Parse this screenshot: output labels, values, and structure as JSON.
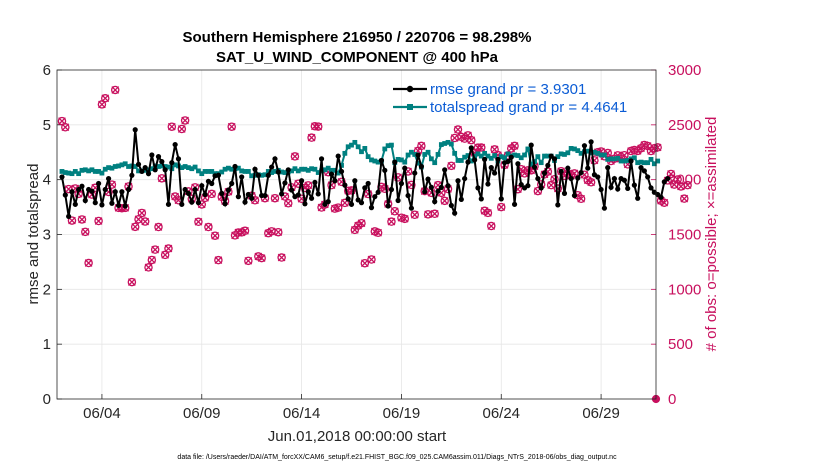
{
  "chart_data": {
    "type": "line",
    "title_line1": "Southern Hemisphere 216950 / 220706 = 98.298%",
    "title_line2": "SAT_U_WIND_COMPONENT @ 400 hPa",
    "ylabel_left": "rmse and totalspread",
    "ylabel_right": "# of obs: o=possible; ×=assimilated",
    "xlabel": "Jun.01,2018 00:00:00 start",
    "footnote": "data file: /Users/raeder/DAI/ATM_forcXX/CAM6_setup/f.e21.FHIST_BGC.f09_025.CAM6assim.011/Diags_NTrS_2018-06/obs_diag_output.nc",
    "x_unit": "days since Jun.01,2018 00:00:00",
    "xlim": [
      0.75,
      30.75
    ],
    "ylim_left": [
      0,
      6
    ],
    "ylim_right": [
      0,
      3000
    ],
    "yticks_left": [
      0,
      1,
      2,
      3,
      4,
      5,
      6
    ],
    "yticks_right": [
      0,
      500,
      1000,
      1500,
      2000,
      2500,
      3000
    ],
    "xticks": [
      {
        "value": 3.0,
        "label": "06/04"
      },
      {
        "value": 8.0,
        "label": "06/09"
      },
      {
        "value": 13.0,
        "label": "06/14"
      },
      {
        "value": 18.0,
        "label": "06/19"
      },
      {
        "value": 23.0,
        "label": "06/24"
      },
      {
        "value": 28.0,
        "label": "06/29"
      }
    ],
    "grid": true,
    "legend_position": "top-right",
    "colors": {
      "rmse": "#000000",
      "totalspread": "#008080",
      "obs": "#c8105e"
    },
    "series": [
      {
        "name": "rmse",
        "legend": "rmse grand pr = 3.9301",
        "values": [
          4.05,
          3.72,
          3.33,
          3.78,
          3.55,
          3.82,
          3.88,
          3.62,
          3.82,
          3.79,
          3.58,
          3.93,
          3.54,
          3.82,
          4.02,
          3.57,
          3.78,
          3.53,
          3.78,
          3.52,
          3.82,
          4.08,
          4.91,
          4.28,
          4.15,
          4.22,
          4.11,
          4.45,
          4.18,
          4.42,
          4.33,
          4.18,
          3.55,
          4.31,
          4.64,
          4.38,
          3.55,
          3.82,
          3.75,
          3.59,
          3.82,
          3.58,
          3.89,
          3.73,
          3.97,
          3.93,
          4.07,
          4.08,
          3.75,
          3.56,
          3.81,
          3.93,
          4.24,
          3.69,
          4.05,
          3.59,
          3.73,
          3.66,
          4.19,
          4.08,
          3.71,
          3.71,
          4.08,
          4.23,
          4.38,
          4.14,
          3.74,
          3.94,
          4.18,
          3.81,
          3.69,
          3.72,
          3.98,
          3.56,
          3.78,
          3.66,
          3.95,
          3.74,
          4.38,
          3.55,
          3.6,
          4.1,
          3.98,
          4.43,
          4.15,
          3.9,
          3.65,
          3.55,
          3.98,
          3.63,
          3.58,
          3.85,
          3.93,
          3.49,
          3.69,
          3.77,
          4.35,
          4.17,
          3.52,
          3.82,
          4.32,
          3.62,
          3.93,
          4.21,
          3.71,
          3.48,
          4.12,
          4.45,
          4.24,
          3.78,
          4.01,
          3.86,
          3.6,
          3.79,
          3.86,
          4.18,
          3.89,
          3.53,
          3.39,
          3.98,
          3.64,
          4.02,
          4.32,
          4.58,
          4.36,
          3.85,
          3.65,
          4.37,
          3.92,
          4.22,
          4.12,
          4.37,
          3.65,
          4.31,
          4.33,
          4.41,
          3.55,
          4.29,
          3.91,
          3.85,
          3.89,
          4.63,
          4.23,
          4.02,
          3.85,
          4.12,
          4.26,
          4.43,
          4.38,
          3.54,
          4.15,
          3.75,
          4.21,
          4.02,
          3.71,
          4.03,
          4.13,
          4.62,
          4.21,
          4.69,
          4.09,
          4.05,
          3.82,
          3.48,
          4.22,
          3.86,
          4.02,
          3.83,
          4.02,
          3.99,
          3.84,
          4.34,
          3.9,
          3.66,
          4.22,
          4.16,
          4.05,
          3.85,
          3.77,
          3.73,
          3.68,
          3.96,
          4.02
        ]
      },
      {
        "name": "totalspread",
        "legend": "totalspread grand pr = 4.4641",
        "values": [
          4.15,
          4.13,
          4.12,
          4.11,
          4.15,
          4.11,
          4.17,
          4.18,
          4.16,
          4.18,
          4.15,
          4.15,
          4.12,
          4.19,
          4.22,
          4.21,
          4.24,
          4.25,
          4.27,
          4.29,
          4.24,
          4.25,
          4.24,
          4.16,
          4.16,
          4.17,
          4.18,
          4.2,
          4.25,
          4.24,
          4.25,
          4.24,
          4.23,
          4.2,
          4.27,
          4.25,
          4.22,
          4.24,
          4.22,
          4.2,
          4.23,
          4.16,
          4.11,
          4.15,
          4.15,
          4.15,
          4.11,
          4.11,
          4.14,
          4.19,
          4.21,
          4.19,
          4.2,
          4.21,
          4.16,
          4.15,
          4.15,
          4.07,
          4.08,
          4.09,
          4.08,
          4.09,
          4.15,
          4.13,
          4.15,
          4.17,
          4.14,
          4.13,
          4.14,
          4.16,
          4.2,
          4.16,
          4.19,
          4.19,
          4.17,
          4.2,
          4.19,
          4.13,
          4.16,
          4.18,
          4.21,
          4.17,
          4.17,
          4.12,
          4.26,
          4.48,
          4.6,
          4.63,
          4.68,
          4.6,
          4.51,
          4.57,
          4.42,
          4.36,
          4.34,
          4.32,
          4.34,
          4.56,
          4.62,
          4.63,
          4.31,
          4.37,
          4.36,
          4.32,
          4.45,
          4.5,
          4.46,
          4.3,
          4.23,
          4.46,
          4.5,
          4.38,
          4.31,
          4.46,
          4.64,
          4.66,
          4.68,
          4.65,
          4.48,
          4.35,
          4.35,
          4.41,
          4.44,
          4.34,
          4.43,
          4.47,
          4.43,
          4.48,
          4.43,
          4.39,
          4.44,
          4.34,
          4.42,
          4.4,
          4.47,
          4.43,
          4.45,
          4.44,
          4.4,
          4.45,
          4.56,
          4.28,
          4.33,
          4.42,
          4.31,
          4.43,
          4.43,
          4.43,
          4.35,
          4.42,
          4.47,
          4.46,
          4.49,
          4.57,
          4.56,
          4.53,
          4.48,
          4.51,
          4.52,
          4.49,
          4.5,
          4.48,
          4.45,
          4.45,
          4.37,
          4.38,
          4.38,
          4.39,
          4.34,
          4.34,
          4.35,
          4.38,
          4.4,
          4.31,
          4.32,
          4.31,
          4.31,
          4.37,
          4.29,
          4.34
        ]
      }
    ],
    "obs_possible": [
      2534,
      2478,
      1914,
      1627,
      1920,
      1871,
      1637,
      1524,
      1240,
      1864,
      1926,
      1623,
      2686,
      2742,
      1888,
      1955,
      2818,
      1743,
      1739,
      1743,
      1938,
      1066,
      1570,
      1639,
      1696,
      1618,
      1200,
      1268,
      1362,
      1568,
      2012,
      1314,
      1372,
      2483,
      1846,
      1812,
      2462,
      2540,
      1893,
      1825,
      1930,
      1616,
      1774,
      1834,
      1568,
      1870,
      1489,
      1266,
      1843,
      1804,
      1890,
      2483,
      1492,
      1518,
      1519,
      1534,
      1260,
      1853,
      1812,
      1300,
      1285,
      1831,
      1512,
      1529,
      1831,
      1521,
      1290,
      1846,
      1785,
      1930,
      2212,
      1963,
      1826,
      1925,
      1948,
      2383,
      2487,
      2484,
      1746,
      1774,
      2068,
      1950,
      1736,
      1745,
      1980,
      1788,
      1898,
      1902,
      1542,
      1581,
      1603,
      1238,
      1869,
      1272,
      1528,
      1516,
      1934,
      1917,
      1778,
      1617,
      1712,
      2021,
      1653,
      1643,
      2075,
      1952,
      1680,
      2263,
      2308,
      1895,
      1684,
      1880,
      1689,
      1950,
      1880,
      1807,
      1915,
      2126,
      2380,
      2457,
      2390,
      2374,
      2404,
      2360,
      2244,
      2292,
      2293,
      1716,
      1697,
      1577,
      2276,
      2224,
      1750,
      2134,
      2221,
      2285,
      2308,
      1913,
      2095,
      2057,
      2085,
      2085,
      2122,
      1896,
      1957,
      2048,
      2073,
      1950,
      2004,
      1919,
      2077,
      2035,
      2055,
      2039,
      2057,
      1858,
      1826,
      2045,
      1995,
      1976,
      2176,
      2250,
      2257,
      2213,
      2243,
      2170,
      2191,
      2222,
      2193,
      2223,
      2139,
      2261,
      2271,
      2262,
      2286,
      2316,
      2307,
      2261,
      2286,
      2294,
      1808,
      1790,
      1993,
      2052,
      1955,
      2002,
      1938,
      1827,
      1950
    ],
    "obs_assimilated": [
      2534,
      2478,
      1914,
      1627,
      1920,
      1871,
      1637,
      1524,
      1240,
      1864,
      1926,
      1623,
      2686,
      2742,
      1888,
      1955,
      2818,
      1743,
      1739,
      1743,
      1938,
      1066,
      1570,
      1639,
      1696,
      1618,
      1200,
      1268,
      1362,
      1568,
      2012,
      1314,
      1372,
      2483,
      1846,
      1812,
      2462,
      2540,
      1893,
      1825,
      1930,
      1616,
      1774,
      1834,
      1568,
      1870,
      1489,
      1266,
      1843,
      1804,
      1890,
      2483,
      1492,
      1518,
      1519,
      1534,
      1260,
      1853,
      1812,
      1300,
      1285,
      1831,
      1512,
      1529,
      1831,
      1521,
      1290,
      1846,
      1785,
      1930,
      2212,
      1963,
      1826,
      1925,
      1948,
      2383,
      2487,
      2484,
      1746,
      1774,
      2068,
      1950,
      1736,
      1745,
      1980,
      1788,
      1898,
      1902,
      1542,
      1581,
      1603,
      1238,
      1869,
      1272,
      1528,
      1516,
      1934,
      1917,
      1778,
      1617,
      1712,
      2021,
      1653,
      1643,
      2075,
      1952,
      1680,
      2263,
      2308,
      1895,
      1684,
      1880,
      1689,
      1950,
      1880,
      1807,
      1915,
      2126,
      2380,
      2457,
      2390,
      2374,
      2404,
      2360,
      2244,
      2292,
      2293,
      1716,
      1697,
      1577,
      2276,
      2224,
      1750,
      2134,
      2221,
      2285,
      2308,
      1913,
      2095,
      2057,
      2085,
      2085,
      2122,
      1896,
      1957,
      2048,
      2073,
      1950,
      2004,
      1919,
      2077,
      2035,
      2055,
      2039,
      2057,
      1858,
      1826,
      2045,
      1995,
      1976,
      2176,
      2250,
      2257,
      2213,
      2243,
      2170,
      2191,
      2222,
      2193,
      2223,
      2139,
      2261,
      2271,
      2262,
      2286,
      2316,
      2307,
      2261,
      2286,
      2294,
      1808,
      1790,
      1993,
      2052,
      1955,
      2002,
      1938,
      1827,
      1950
    ],
    "obs_start_marker": {
      "x": 30.75,
      "value": 0
    }
  }
}
